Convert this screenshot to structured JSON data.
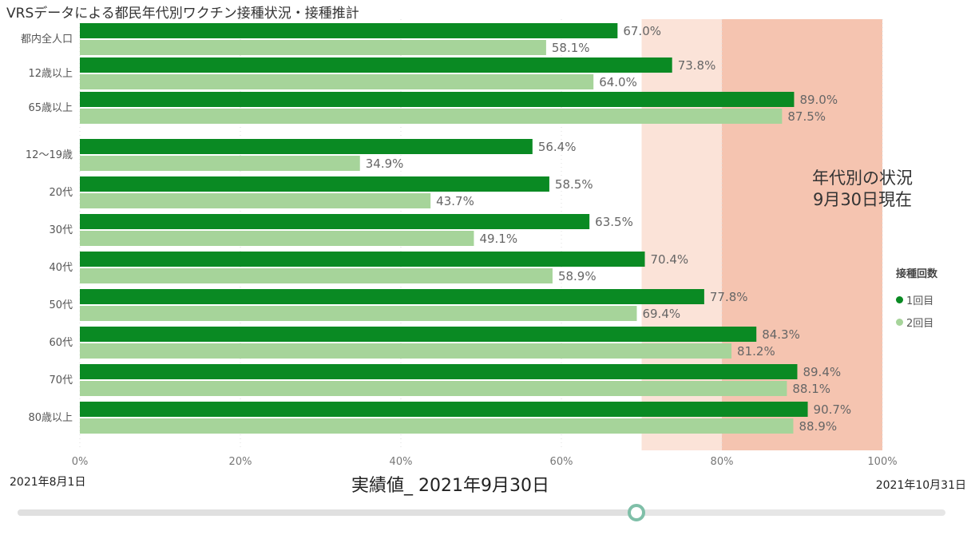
{
  "title": "VRSデータによる都民年代別ワクチン接種状況・接種推計",
  "overlay": {
    "line1": "年代別の状況",
    "line2": "9月30日現在"
  },
  "legend": {
    "title": "接種回数",
    "items": [
      {
        "label": "1回目",
        "color": "#0a8a23"
      },
      {
        "label": "2回目",
        "color": "#a6d49a"
      }
    ]
  },
  "colors": {
    "dose1": "#0a8a23",
    "dose2": "#a6d49a",
    "band_light": "#fbe3d8",
    "band_dark": "#f5c4b0",
    "value_label": "#666666",
    "axis_label": "#777777",
    "slider_thumb": "#7fbfa8"
  },
  "slider": {
    "start_label": "2021年8月1日",
    "end_label": "2021年10月31日",
    "current_prefix": "実績値_",
    "current_label": "2021年9月30日",
    "position": 0.667
  },
  "chart_data": {
    "type": "bar",
    "orientation": "horizontal",
    "categories": [
      "都内全人口",
      "12歳以上",
      "65歳以上",
      "12〜19歳",
      "20代",
      "30代",
      "40代",
      "50代",
      "60代",
      "70代",
      "80歳以上"
    ],
    "series": [
      {
        "name": "1回目",
        "values": [
          67.0,
          73.8,
          89.0,
          56.4,
          58.5,
          63.5,
          70.4,
          77.8,
          84.3,
          89.4,
          90.7
        ]
      },
      {
        "name": "2回目",
        "values": [
          58.1,
          64.0,
          87.5,
          34.9,
          43.7,
          49.1,
          58.9,
          69.4,
          81.2,
          88.1,
          88.9
        ]
      }
    ],
    "value_labels": {
      "1回目": [
        "67.0%",
        "73.8%",
        "89.0%",
        "56.4%",
        "58.5%",
        "63.5%",
        "70.4%",
        "77.8%",
        "84.3%",
        "89.4%",
        "90.7%"
      ],
      "2回目": [
        "58.1%",
        "64.0%",
        "87.5%",
        "34.9%",
        "43.7%",
        "49.1%",
        "58.9%",
        "69.4%",
        "81.2%",
        "88.1%",
        "88.9%"
      ]
    },
    "xlim": [
      0,
      100
    ],
    "xticks": [
      0,
      20,
      40,
      60,
      80,
      100
    ],
    "xtick_labels": [
      "0%",
      "20%",
      "40%",
      "60%",
      "80%",
      "100%"
    ],
    "shaded_bands": [
      {
        "from": 70,
        "to": 80,
        "shade": "light"
      },
      {
        "from": 80,
        "to": 100,
        "shade": "dark"
      }
    ],
    "grid": true,
    "legend_position": "right"
  }
}
